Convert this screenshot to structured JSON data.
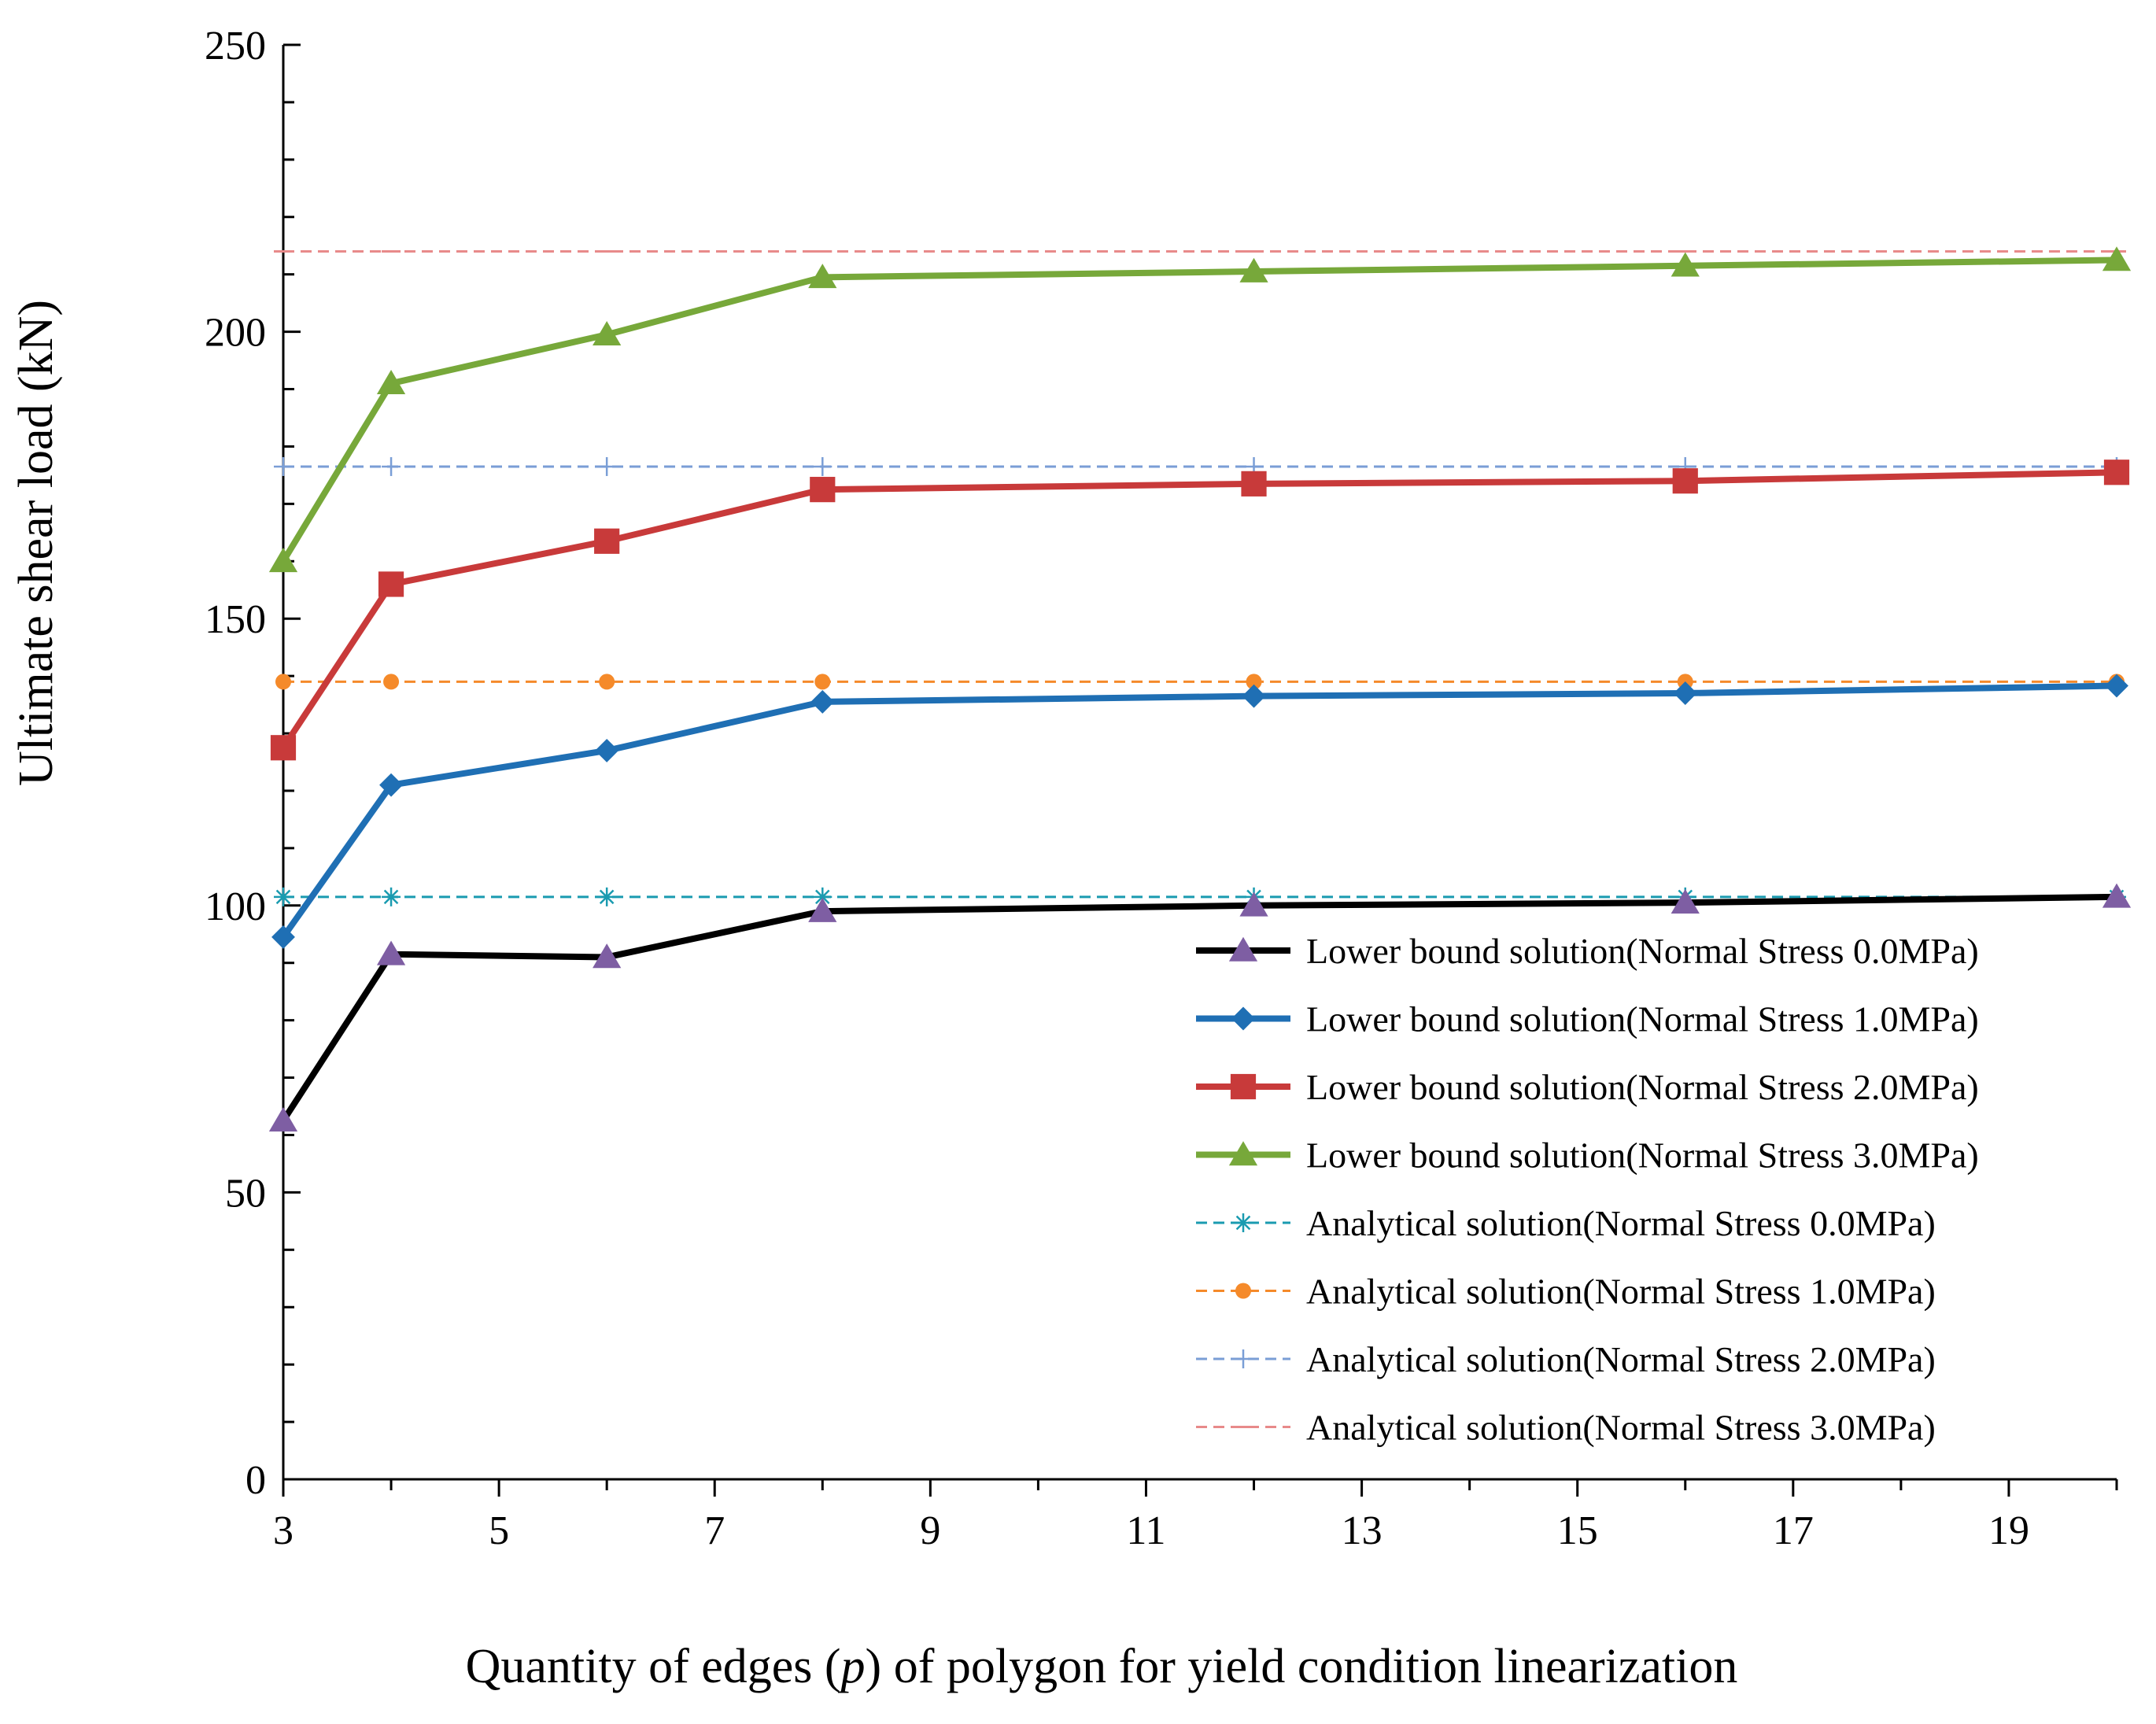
{
  "chart_data": {
    "type": "line",
    "xlabel_parts": [
      "Quantity of edges (",
      "p",
      ") of polygon for yield condition linearization"
    ],
    "ylabel": "Ultimate shear load (kN)",
    "xlim": [
      3,
      20
    ],
    "ylim": [
      0,
      250
    ],
    "x_ticks": [
      "3",
      "5",
      "7",
      "9",
      "11",
      "13",
      "15",
      "17",
      "19"
    ],
    "x_tick_values": [
      3,
      5,
      7,
      9,
      11,
      13,
      15,
      17,
      19
    ],
    "y_ticks": [
      "0",
      "50",
      "100",
      "150",
      "200",
      "250"
    ],
    "y_tick_values": [
      0,
      50,
      100,
      150,
      200,
      250
    ],
    "legend_position": "bottom-right",
    "x": [
      3,
      4,
      6,
      8,
      12,
      16,
      20
    ],
    "series": [
      {
        "name": "Lower bound solution(Normal Stress 0.0MPa)",
        "values": [
          62.5,
          91.5,
          91.0,
          99.0,
          100.0,
          100.5,
          101.5
        ],
        "color": "#000000",
        "marker": "triangle",
        "marker_color": "#7e5ea3",
        "dash": "solid"
      },
      {
        "name": "Lower bound solution(Normal Stress 1.0MPa)",
        "values": [
          94.5,
          121.0,
          127.0,
          135.5,
          136.5,
          137.0,
          138.3
        ],
        "color": "#1f6fb4",
        "marker": "diamond",
        "marker_color": "#1f6fb4",
        "dash": "solid"
      },
      {
        "name": "Lower bound solution(Normal Stress 2.0MPa)",
        "values": [
          127.5,
          156.0,
          163.5,
          172.5,
          173.5,
          174.0,
          175.5
        ],
        "color": "#c83a3a",
        "marker": "square",
        "marker_color": "#c83a3a",
        "dash": "solid"
      },
      {
        "name": "Lower bound solution(Normal Stress 3.0MPa)",
        "values": [
          160.0,
          191.0,
          199.5,
          209.5,
          210.5,
          211.5,
          212.5
        ],
        "color": "#77a83a",
        "marker": "triangle",
        "marker_color": "#77a83a",
        "dash": "solid"
      },
      {
        "name": "Analytical solution(Normal Stress 0.0MPa)",
        "values": [
          101.5,
          101.5,
          101.5,
          101.5,
          101.5,
          101.5,
          101.5
        ],
        "color": "#1a9bb0",
        "marker": "asterisk",
        "marker_color": "#1a9bb0",
        "dash": "dash"
      },
      {
        "name": "Analytical solution(Normal Stress 1.0MPa)",
        "values": [
          139.0,
          139.0,
          139.0,
          139.0,
          139.0,
          139.0,
          139.0
        ],
        "color": "#f58a2a",
        "marker": "circle",
        "marker_color": "#f58a2a",
        "dash": "dash"
      },
      {
        "name": "Analytical solution(Normal Stress 2.0MPa)",
        "values": [
          176.5,
          176.5,
          176.5,
          176.5,
          176.5,
          176.5,
          176.5
        ],
        "color": "#7a9ed6",
        "marker": "plus",
        "marker_color": "#7a9ed6",
        "dash": "dash"
      },
      {
        "name": "Analytical solution(Normal Stress 3.0MPa)",
        "values": [
          214.0,
          214.0,
          214.0,
          214.0,
          214.0,
          214.0,
          214.0
        ],
        "color": "#e88a8a",
        "marker": "dash",
        "marker_color": "#e88a8a",
        "dash": "dash"
      }
    ]
  }
}
